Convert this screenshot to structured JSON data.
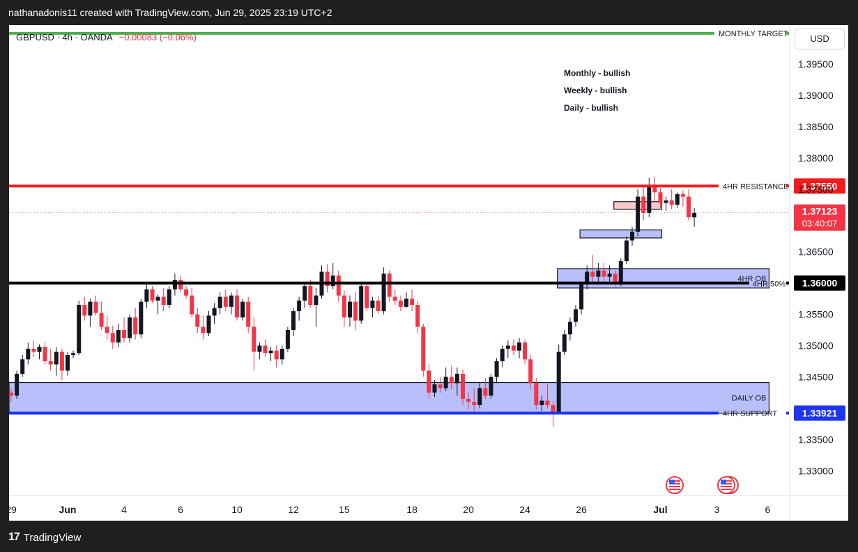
{
  "credit": "nathanadonis11 created with TradingView.com, Jun 29, 2025 23:19 UTC+2",
  "legend": {
    "symbol": "GBPUSD · 4h · OANDA",
    "change": "−0.00083 (−0.06%)"
  },
  "currency": "USD",
  "notes": [
    "Monthly - bullish",
    "Weekly - bullish",
    "Daily - bullish"
  ],
  "footer": {
    "brand": "TradingView"
  },
  "colors": {
    "up": "#131722",
    "down": "#f23645",
    "zone": "#b9bffb",
    "resistance": "#f21c1c",
    "support": "#1e36f0",
    "target": "#4caf50"
  },
  "chart_data": {
    "type": "candlestick",
    "symbol": "GBPUSD",
    "timeframe": "4h",
    "ylim": [
      1.325,
      1.4
    ],
    "y_ticks": [
      "1.39500",
      "1.39000",
      "1.38500",
      "1.38000",
      "1.37500",
      "1.37000",
      "1.36500",
      "1.36000",
      "1.35500",
      "1.35000",
      "1.34500",
      "1.34000",
      "1.33500",
      "1.33000"
    ],
    "x_ticks": [
      {
        "label": "29",
        "i": 0
      },
      {
        "label": "Jun",
        "i": 10
      },
      {
        "label": "4",
        "i": 20
      },
      {
        "label": "6",
        "i": 30
      },
      {
        "label": "10",
        "i": 40
      },
      {
        "label": "12",
        "i": 50
      },
      {
        "label": "15",
        "i": 59
      },
      {
        "label": "18",
        "i": 71
      },
      {
        "label": "20",
        "i": 81
      },
      {
        "label": "24",
        "i": 91
      },
      {
        "label": "26",
        "i": 101
      },
      {
        "label": "Jul",
        "i": 115
      },
      {
        "label": "3",
        "i": 125
      },
      {
        "label": "6",
        "i": 134
      }
    ],
    "lines": [
      {
        "label": "MONTHLY TARGET",
        "price": 1.3999,
        "color": "#4caf50"
      },
      {
        "label": "4HR RESISTANCE",
        "price": 1.3755,
        "color": "#f21c1c",
        "badge": "1.37550"
      },
      {
        "label": "",
        "price": 1.36,
        "color": "#000000",
        "badge": "1.36000"
      },
      {
        "label": "4HR SUPPORT",
        "price": 1.33921,
        "color": "#1e36f0",
        "badge": "1.33921"
      }
    ],
    "zones": [
      {
        "label": "DAILY OB",
        "top": 1.3441,
        "bottom": 1.3392,
        "from_i": 0,
        "to_i": 134
      },
      {
        "label": "4HR OB",
        "top": 1.3623,
        "bottom": 1.3592,
        "from_i": 97,
        "to_i": 134
      },
      {
        "label": "",
        "top": 1.3685,
        "bottom": 1.3672,
        "from_i": 101,
        "to_i": 115
      },
      {
        "label": "",
        "top": 1.373,
        "bottom": 1.3718,
        "from_i": 107,
        "to_i": 115
      }
    ],
    "fifty_pct": {
      "label": "4HR 50%",
      "price": 1.36
    },
    "current": {
      "price": "1.37123",
      "countdown": "03:40:07",
      "value": 1.37123
    },
    "candles": [
      [
        1.3425,
        1.3432,
        1.341,
        1.342
      ],
      [
        1.342,
        1.346,
        1.3415,
        1.3455
      ],
      [
        1.3455,
        1.3485,
        1.345,
        1.3478
      ],
      [
        1.3478,
        1.3505,
        1.347,
        1.3495
      ],
      [
        1.3495,
        1.3508,
        1.3482,
        1.349
      ],
      [
        1.349,
        1.3502,
        1.3478,
        1.3498
      ],
      [
        1.3498,
        1.3505,
        1.347,
        1.3475
      ],
      [
        1.3475,
        1.3495,
        1.346,
        1.347
      ],
      [
        1.347,
        1.3498,
        1.3452,
        1.349
      ],
      [
        1.349,
        1.3495,
        1.3445,
        1.346
      ],
      [
        1.346,
        1.349,
        1.3452,
        1.3485
      ],
      [
        1.3485,
        1.3492,
        1.348,
        1.3488
      ],
      [
        1.3488,
        1.3572,
        1.3485,
        1.3565
      ],
      [
        1.3565,
        1.3578,
        1.354,
        1.3548
      ],
      [
        1.3548,
        1.3575,
        1.353,
        1.357
      ],
      [
        1.357,
        1.358,
        1.3548,
        1.3552
      ],
      [
        1.3552,
        1.357,
        1.3525,
        1.353
      ],
      [
        1.353,
        1.3548,
        1.351,
        1.352
      ],
      [
        1.352,
        1.3532,
        1.3495,
        1.3505
      ],
      [
        1.3505,
        1.3535,
        1.3498,
        1.3525
      ],
      [
        1.3525,
        1.3545,
        1.3505,
        1.3512
      ],
      [
        1.3512,
        1.355,
        1.3505,
        1.3545
      ],
      [
        1.3545,
        1.356,
        1.351,
        1.3518
      ],
      [
        1.3518,
        1.3575,
        1.3512,
        1.357
      ],
      [
        1.357,
        1.3598,
        1.356,
        1.359
      ],
      [
        1.359,
        1.3595,
        1.3568,
        1.3572
      ],
      [
        1.3572,
        1.3582,
        1.355,
        1.3578
      ],
      [
        1.3578,
        1.3592,
        1.3555,
        1.3565
      ],
      [
        1.3565,
        1.3595,
        1.356,
        1.359
      ],
      [
        1.359,
        1.3615,
        1.358,
        1.3605
      ],
      [
        1.3605,
        1.3612,
        1.3585,
        1.359
      ],
      [
        1.359,
        1.3595,
        1.3575,
        1.358
      ],
      [
        1.358,
        1.3592,
        1.3545,
        1.355
      ],
      [
        1.355,
        1.356,
        1.352,
        1.353
      ],
      [
        1.353,
        1.3548,
        1.351,
        1.352
      ],
      [
        1.352,
        1.3555,
        1.3515,
        1.3548
      ],
      [
        1.3548,
        1.3568,
        1.3535,
        1.356
      ],
      [
        1.356,
        1.3585,
        1.355,
        1.3578
      ],
      [
        1.3578,
        1.359,
        1.3555,
        1.3562
      ],
      [
        1.3562,
        1.3585,
        1.355,
        1.358
      ],
      [
        1.358,
        1.359,
        1.354,
        1.3545
      ],
      [
        1.3545,
        1.3575,
        1.354,
        1.357
      ],
      [
        1.357,
        1.3578,
        1.352,
        1.353
      ],
      [
        1.353,
        1.3545,
        1.346,
        1.349
      ],
      [
        1.349,
        1.3505,
        1.3478,
        1.35
      ],
      [
        1.35,
        1.351,
        1.3482,
        1.3488
      ],
      [
        1.3488,
        1.3498,
        1.3475,
        1.3492
      ],
      [
        1.3492,
        1.35,
        1.3465,
        1.3478
      ],
      [
        1.3478,
        1.35,
        1.347,
        1.3495
      ],
      [
        1.3495,
        1.353,
        1.349,
        1.3525
      ],
      [
        1.3525,
        1.356,
        1.3515,
        1.3555
      ],
      [
        1.3555,
        1.3578,
        1.354,
        1.3572
      ],
      [
        1.3572,
        1.36,
        1.356,
        1.3595
      ],
      [
        1.3595,
        1.3605,
        1.356,
        1.3565
      ],
      [
        1.3565,
        1.3592,
        1.353,
        1.358
      ],
      [
        1.358,
        1.3628,
        1.3575,
        1.3618
      ],
      [
        1.3618,
        1.363,
        1.3585,
        1.3595
      ],
      [
        1.3595,
        1.3632,
        1.359,
        1.3612
      ],
      [
        1.3612,
        1.362,
        1.357,
        1.358
      ],
      [
        1.358,
        1.3588,
        1.353,
        1.3545
      ],
      [
        1.3545,
        1.358,
        1.353,
        1.357
      ],
      [
        1.357,
        1.3585,
        1.3525,
        1.354
      ],
      [
        1.354,
        1.36,
        1.3535,
        1.3595
      ],
      [
        1.3595,
        1.3602,
        1.3555,
        1.356
      ],
      [
        1.356,
        1.3578,
        1.3545,
        1.3572
      ],
      [
        1.3572,
        1.358,
        1.355,
        1.3555
      ],
      [
        1.3555,
        1.3625,
        1.355,
        1.3615
      ],
      [
        1.3615,
        1.362,
        1.357,
        1.3578
      ],
      [
        1.3578,
        1.359,
        1.3565,
        1.3572
      ],
      [
        1.3572,
        1.358,
        1.3555,
        1.3562
      ],
      [
        1.3562,
        1.3585,
        1.356,
        1.3575
      ],
      [
        1.3575,
        1.359,
        1.3555,
        1.3565
      ],
      [
        1.3565,
        1.3572,
        1.352,
        1.353
      ],
      [
        1.353,
        1.3535,
        1.345,
        1.346
      ],
      [
        1.346,
        1.347,
        1.3415,
        1.3425
      ],
      [
        1.3425,
        1.3445,
        1.3418,
        1.3438
      ],
      [
        1.3438,
        1.345,
        1.3425,
        1.3432
      ],
      [
        1.3432,
        1.3465,
        1.3428,
        1.345
      ],
      [
        1.345,
        1.3468,
        1.343,
        1.344
      ],
      [
        1.344,
        1.3465,
        1.342,
        1.3455
      ],
      [
        1.3455,
        1.3462,
        1.3405,
        1.3415
      ],
      [
        1.3415,
        1.3425,
        1.3398,
        1.341
      ],
      [
        1.341,
        1.3432,
        1.3395,
        1.3405
      ],
      [
        1.3405,
        1.344,
        1.34,
        1.3432
      ],
      [
        1.3432,
        1.3448,
        1.3415,
        1.342
      ],
      [
        1.342,
        1.3455,
        1.3415,
        1.345
      ],
      [
        1.345,
        1.348,
        1.344,
        1.3475
      ],
      [
        1.3475,
        1.35,
        1.3465,
        1.3495
      ],
      [
        1.3495,
        1.3508,
        1.348,
        1.35
      ],
      [
        1.35,
        1.351,
        1.3485,
        1.3492
      ],
      [
        1.3492,
        1.3512,
        1.348,
        1.3505
      ],
      [
        1.3505,
        1.351,
        1.347,
        1.3478
      ],
      [
        1.3478,
        1.3485,
        1.343,
        1.344
      ],
      [
        1.344,
        1.3448,
        1.3398,
        1.3405
      ],
      [
        1.3405,
        1.342,
        1.3395,
        1.3412
      ],
      [
        1.3412,
        1.3438,
        1.34,
        1.3405
      ],
      [
        1.3405,
        1.341,
        1.337,
        1.3392
      ],
      [
        1.3392,
        1.3502,
        1.339,
        1.349
      ],
      [
        1.349,
        1.3525,
        1.3485,
        1.3518
      ],
      [
        1.3518,
        1.3545,
        1.3508,
        1.3538
      ],
      [
        1.3538,
        1.3565,
        1.353,
        1.3558
      ],
      [
        1.3558,
        1.3602,
        1.355,
        1.3598
      ],
      [
        1.3598,
        1.3628,
        1.359,
        1.3618
      ],
      [
        1.3618,
        1.3645,
        1.3598,
        1.361
      ],
      [
        1.361,
        1.3632,
        1.36,
        1.362
      ],
      [
        1.362,
        1.3632,
        1.3598,
        1.361
      ],
      [
        1.361,
        1.3628,
        1.36,
        1.3615
      ],
      [
        1.3615,
        1.362,
        1.3595,
        1.36
      ],
      [
        1.36,
        1.364,
        1.3595,
        1.3635
      ],
      [
        1.3635,
        1.3675,
        1.363,
        1.3668
      ],
      [
        1.3668,
        1.369,
        1.366,
        1.3682
      ],
      [
        1.3682,
        1.375,
        1.3675,
        1.3738
      ],
      [
        1.3738,
        1.3755,
        1.37,
        1.3712
      ],
      [
        1.3712,
        1.3768,
        1.3705,
        1.3755
      ],
      [
        1.3755,
        1.377,
        1.373,
        1.3745
      ],
      [
        1.3745,
        1.3752,
        1.372,
        1.3728
      ],
      [
        1.3728,
        1.3738,
        1.3715,
        1.3732
      ],
      [
        1.3732,
        1.375,
        1.3718,
        1.3725
      ],
      [
        1.3725,
        1.3745,
        1.372,
        1.3742
      ],
      [
        1.3742,
        1.3748,
        1.3722,
        1.3738
      ],
      [
        1.3738,
        1.375,
        1.37,
        1.3705
      ],
      [
        1.3705,
        1.372,
        1.369,
        1.3712
      ]
    ]
  }
}
